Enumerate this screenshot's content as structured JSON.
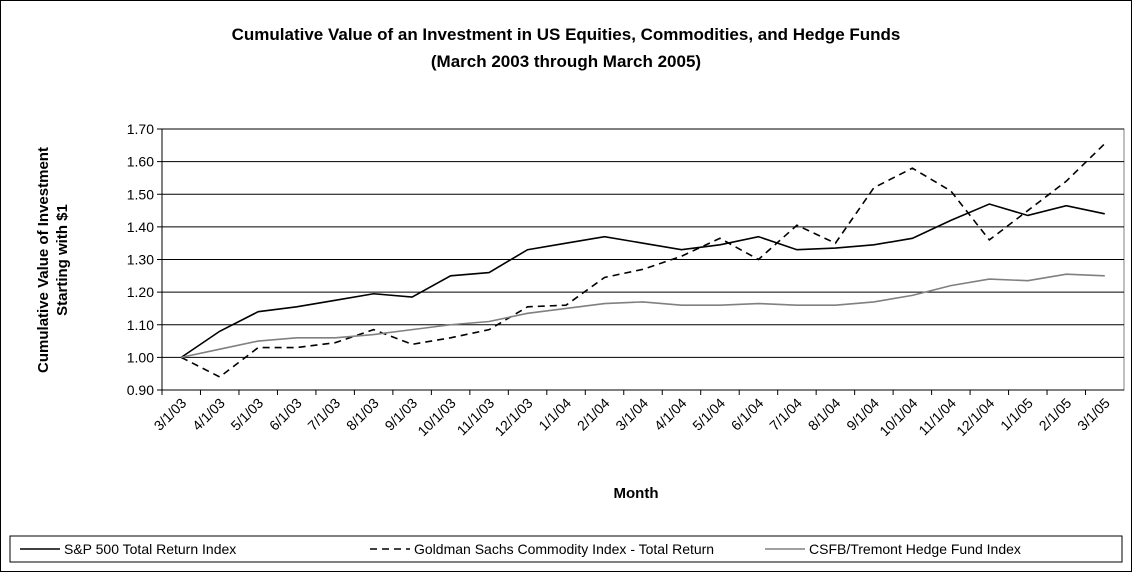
{
  "chart_data": {
    "type": "line",
    "title": "Cumulative Value of an Investment in US Equities, Commodities, and Hedge Funds",
    "subtitle": "(March 2003 through March 2005)",
    "x_label": "Month",
    "y_label": [
      "Cumulative Value of Investment",
      "Starting with $1"
    ],
    "categories": [
      "3/1/03",
      "4/1/03",
      "5/1/03",
      "6/1/03",
      "7/1/03",
      "8/1/03",
      "9/1/03",
      "10/1/03",
      "11/1/03",
      "12/1/03",
      "1/1/04",
      "2/1/04",
      "3/1/04",
      "4/1/04",
      "5/1/04",
      "6/1/04",
      "7/1/04",
      "8/1/04",
      "9/1/04",
      "10/1/04",
      "11/1/04",
      "12/1/04",
      "1/1/05",
      "2/1/05",
      "3/1/05"
    ],
    "series": [
      {
        "name": "S&P 500 Total Return Index",
        "color": "#000000",
        "dash": false,
        "values": [
          1.0,
          1.08,
          1.14,
          1.155,
          1.175,
          1.195,
          1.185,
          1.25,
          1.26,
          1.33,
          1.35,
          1.37,
          1.35,
          1.33,
          1.345,
          1.37,
          1.33,
          1.335,
          1.345,
          1.365,
          1.42,
          1.47,
          1.435,
          1.465,
          1.44
        ]
      },
      {
        "name": "Goldman Sachs Commodity Index - Total Return",
        "color": "#000000",
        "dash": true,
        "values": [
          1.0,
          0.94,
          1.03,
          1.03,
          1.045,
          1.085,
          1.04,
          1.06,
          1.085,
          1.155,
          1.16,
          1.245,
          1.27,
          1.31,
          1.365,
          1.3,
          1.405,
          1.35,
          1.52,
          1.58,
          1.51,
          1.36,
          1.45,
          1.54,
          1.655
        ]
      },
      {
        "name": "CSFB/Tremont Hedge Fund Index",
        "color": "#808080",
        "dash": false,
        "values": [
          1.0,
          1.025,
          1.05,
          1.06,
          1.06,
          1.07,
          1.085,
          1.1,
          1.11,
          1.135,
          1.15,
          1.165,
          1.17,
          1.16,
          1.16,
          1.165,
          1.16,
          1.16,
          1.17,
          1.19,
          1.22,
          1.24,
          1.235,
          1.255,
          1.25
        ]
      }
    ],
    "ylim": [
      0.9,
      1.7
    ],
    "yticks": [
      {
        "value": 0.9,
        "label": "0.90"
      },
      {
        "value": 1.0,
        "label": "1.00"
      },
      {
        "value": 1.1,
        "label": "1.10"
      },
      {
        "value": 1.2,
        "label": "1.20"
      },
      {
        "value": 1.3,
        "label": "1.30"
      },
      {
        "value": 1.4,
        "label": "1.40"
      },
      {
        "value": 1.5,
        "label": "1.50"
      },
      {
        "value": 1.6,
        "label": "1.60"
      },
      {
        "value": 1.7,
        "label": "1.70"
      }
    ],
    "grid": true,
    "legend": "bottom"
  }
}
